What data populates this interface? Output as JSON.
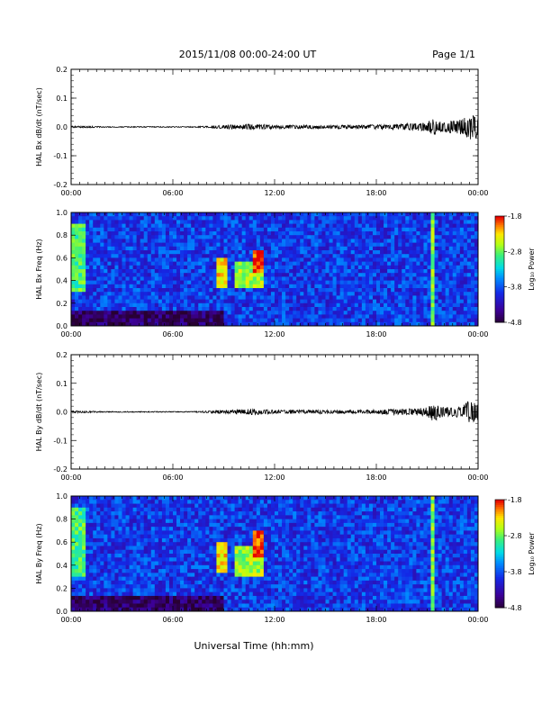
{
  "header": {
    "title": "2015/11/08  00:00-24:00 UT",
    "page_label": "Page 1/1"
  },
  "xaxis_label": "Universal Time (hh:mm)",
  "chart_data": [
    {
      "type": "line",
      "ylabel": "HAL Bx dB/dt (nT/sec)",
      "ylim": [
        -0.2,
        0.2
      ],
      "yticks": [
        0.2,
        0.1,
        0.0,
        -0.1,
        -0.2
      ],
      "ytick_labels": [
        "0.2",
        "0.1",
        "0.0",
        "-0.1",
        "-0.2"
      ],
      "xlim": [
        0,
        24
      ],
      "xtick_labels": [
        "00:00",
        "06:00",
        "12:00",
        "18:00",
        "00:00"
      ],
      "envelope_hours": [
        0,
        1,
        2,
        3,
        4,
        5,
        6,
        7,
        8,
        8.7,
        9,
        10,
        10.5,
        11,
        12,
        13,
        14,
        15,
        16,
        17,
        18,
        19,
        20,
        20.5,
        21,
        21.3,
        22,
        22.5,
        23,
        23.5,
        24
      ],
      "envelope_amplitude": [
        0.002,
        0.002,
        0.001,
        0.001,
        0.001,
        0.001,
        0.001,
        0.001,
        0.002,
        0.004,
        0.004,
        0.005,
        0.007,
        0.006,
        0.004,
        0.004,
        0.004,
        0.004,
        0.004,
        0.004,
        0.005,
        0.006,
        0.008,
        0.008,
        0.01,
        0.018,
        0.012,
        0.014,
        0.016,
        0.03,
        0.025
      ]
    },
    {
      "type": "heatmap",
      "ylabel": "HAL Bx Freq (Hz)",
      "ylim": [
        0.0,
        1.0
      ],
      "ytick_labels": [
        "1.0",
        "0.8",
        "0.6",
        "0.4",
        "0.2",
        "0.0"
      ],
      "xlim": [
        0,
        24
      ],
      "xtick_labels": [
        "00:00",
        "06:00",
        "12:00",
        "18:00",
        "00:00"
      ],
      "colorbar": {
        "label": "Log₁₀ Power",
        "range": [
          -4.8,
          -1.8
        ],
        "tick_labels": [
          "-1.8",
          "-2.8",
          "-3.8",
          "-4.8"
        ]
      },
      "background_log_power": -3.9,
      "features": [
        {
          "t0": 0.0,
          "t1": 0.8,
          "f0": 0.3,
          "f1": 0.9,
          "level": -2.9
        },
        {
          "t0": 8.6,
          "t1": 9.2,
          "f0": 0.35,
          "f1": 0.6,
          "level": -2.3
        },
        {
          "t0": 9.6,
          "t1": 11.4,
          "f0": 0.35,
          "f1": 0.55,
          "level": -2.6
        },
        {
          "t0": 10.8,
          "t1": 11.3,
          "f0": 0.45,
          "f1": 0.65,
          "level": -1.9
        },
        {
          "t0": 21.2,
          "t1": 21.4,
          "f0": 0.0,
          "f1": 1.0,
          "level": -2.7
        },
        {
          "t0": 0.0,
          "t1": 9.0,
          "f0": 0.0,
          "f1": 0.15,
          "level": -4.6
        }
      ]
    },
    {
      "type": "line",
      "ylabel": "HAL By dB/dt (nT/sec)",
      "ylim": [
        -0.2,
        0.2
      ],
      "yticks": [
        0.2,
        0.1,
        0.0,
        -0.1,
        -0.2
      ],
      "ytick_labels": [
        "0.2",
        "0.1",
        "0.0",
        "-0.1",
        "-0.2"
      ],
      "xlim": [
        0,
        24
      ],
      "xtick_labels": [
        "00:00",
        "06:00",
        "12:00",
        "18:00",
        "00:00"
      ],
      "envelope_hours": [
        0,
        1,
        2,
        3,
        4,
        5,
        6,
        7,
        8,
        8.7,
        9,
        10,
        10.5,
        11,
        12,
        13,
        14,
        15,
        16,
        17,
        18,
        19,
        20,
        20.5,
        21,
        21.3,
        22,
        22.5,
        23,
        23.5,
        24
      ],
      "envelope_amplitude": [
        0.002,
        0.002,
        0.001,
        0.001,
        0.001,
        0.001,
        0.001,
        0.001,
        0.002,
        0.004,
        0.004,
        0.005,
        0.007,
        0.006,
        0.004,
        0.004,
        0.004,
        0.004,
        0.004,
        0.004,
        0.005,
        0.006,
        0.008,
        0.008,
        0.01,
        0.022,
        0.01,
        0.012,
        0.012,
        0.025,
        0.02
      ]
    },
    {
      "type": "heatmap",
      "ylabel": "HAL By Freq (Hz)",
      "ylim": [
        0.0,
        1.0
      ],
      "ytick_labels": [
        "1.0",
        "0.8",
        "0.6",
        "0.4",
        "0.2",
        "0.0"
      ],
      "xlim": [
        0,
        24
      ],
      "xtick_labels": [
        "00:00",
        "06:00",
        "12:00",
        "18:00",
        "00:00"
      ],
      "colorbar": {
        "label": "Log₁₀ Power",
        "range": [
          -4.8,
          -1.8
        ],
        "tick_labels": [
          "-1.8",
          "-2.8",
          "-3.8",
          "-4.8"
        ]
      },
      "background_log_power": -3.9,
      "features": [
        {
          "t0": 0.0,
          "t1": 0.8,
          "f0": 0.3,
          "f1": 0.9,
          "level": -2.9
        },
        {
          "t0": 8.6,
          "t1": 9.2,
          "f0": 0.35,
          "f1": 0.6,
          "level": -2.3
        },
        {
          "t0": 9.6,
          "t1": 11.4,
          "f0": 0.3,
          "f1": 0.55,
          "level": -2.6
        },
        {
          "t0": 10.8,
          "t1": 11.3,
          "f0": 0.45,
          "f1": 0.7,
          "level": -1.9
        },
        {
          "t0": 21.2,
          "t1": 21.4,
          "f0": 0.0,
          "f1": 1.0,
          "level": -2.7
        },
        {
          "t0": 0.0,
          "t1": 9.0,
          "f0": 0.0,
          "f1": 0.15,
          "level": -4.6
        }
      ]
    }
  ]
}
